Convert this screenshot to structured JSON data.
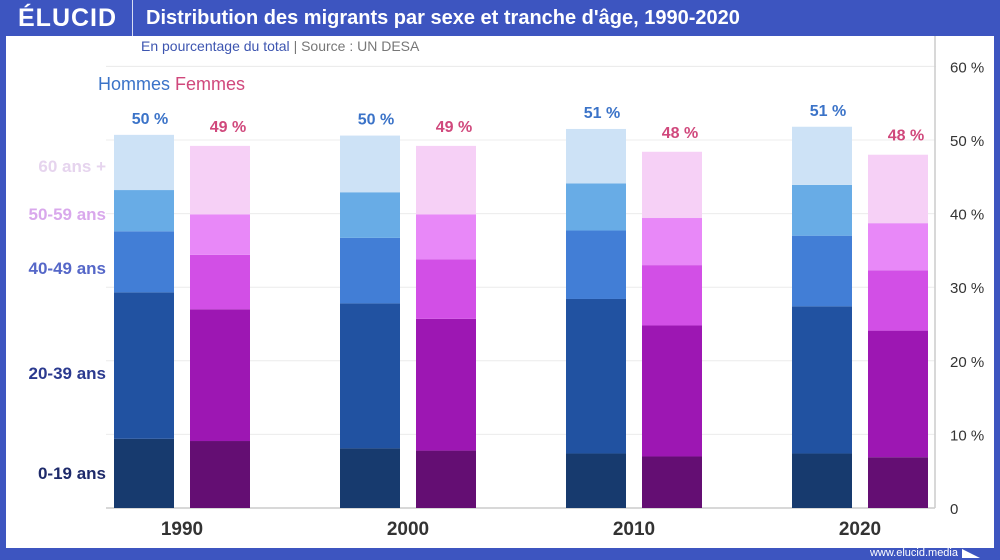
{
  "header": {
    "logo": "ÉLUCID",
    "title": "Distribution des migrants par sexe et tranche d'âge, 1990-2020"
  },
  "subtitle": {
    "unit": "En pourcentage du total",
    "separator": "|",
    "source": "Source : UN DESA"
  },
  "footer": {
    "url": "www.elucid.media"
  },
  "chart_data": {
    "type": "bar",
    "stacked": true,
    "title": "Distribution des migrants par sexe et tranche d'âge, 1990-2020",
    "categories": [
      "1990",
      "2000",
      "2010",
      "2020"
    ],
    "legend": [
      "Hommes",
      "Femmes"
    ],
    "age_groups": [
      "0-19 ans",
      "20-39 ans",
      "40-49 ans",
      "50-59 ans",
      "60 ans +"
    ],
    "ylim": [
      0,
      60
    ],
    "yticks": [
      "0",
      "10 %",
      "20 %",
      "30 %",
      "40 %",
      "50 %",
      "60 %"
    ],
    "grid": true,
    "series": [
      {
        "name": "Hommes",
        "total_labels": [
          "50 %",
          "50 %",
          "51 %",
          "51 %"
        ],
        "colors": [
          "#173a6e",
          "#2152a1",
          "#427ed6",
          "#68ace6",
          "#cde2f6"
        ],
        "values": [
          [
            9.4,
            19.9,
            8.3,
            5.6,
            7.5
          ],
          [
            8.1,
            19.7,
            8.9,
            6.2,
            7.7
          ],
          [
            7.4,
            21.0,
            9.3,
            6.4,
            7.4
          ],
          [
            7.4,
            20.0,
            9.6,
            6.9,
            7.9
          ]
        ]
      },
      {
        "name": "Femmes",
        "total_labels": [
          "49 %",
          "49 %",
          "48 %",
          "48 %"
        ],
        "colors": [
          "#640e73",
          "#9d17b3",
          "#d24fe6",
          "#e888f8",
          "#f6d0f6"
        ],
        "values": [
          [
            9.1,
            17.9,
            7.4,
            5.5,
            9.3
          ],
          [
            7.8,
            17.9,
            8.1,
            6.1,
            9.3
          ],
          [
            7.0,
            17.8,
            8.2,
            6.4,
            9.0
          ],
          [
            6.9,
            17.2,
            8.2,
            6.4,
            9.3
          ]
        ]
      }
    ],
    "colors": {
      "hommes": "#3b73c8",
      "femmes": "#d0487c",
      "age_labels": [
        "#1e2a6a",
        "#2b3a8f",
        "#5567c8",
        "#d9a8ec",
        "#e6d4ee"
      ]
    }
  }
}
